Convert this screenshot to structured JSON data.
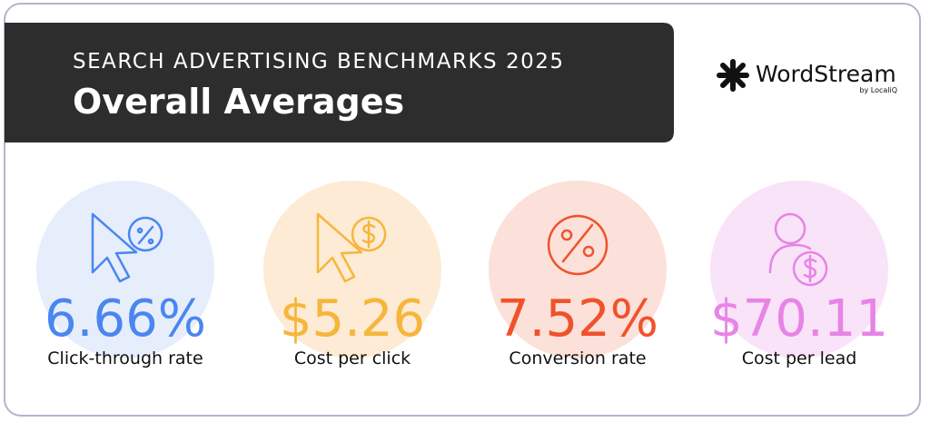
{
  "header": {
    "subtitle": "SEARCH ADVERTISING BENCHMARKS 2025",
    "title": "Overall Averages"
  },
  "logo": {
    "name": "WordStream",
    "byline": "by LocaliQ"
  },
  "metrics": [
    {
      "value": "6.66%",
      "label": "Click-through rate"
    },
    {
      "value": "$5.26",
      "label": "Cost per click"
    },
    {
      "value": "7.52%",
      "label": "Conversion rate"
    },
    {
      "value": "$70.11",
      "label": "Cost per lead"
    }
  ]
}
